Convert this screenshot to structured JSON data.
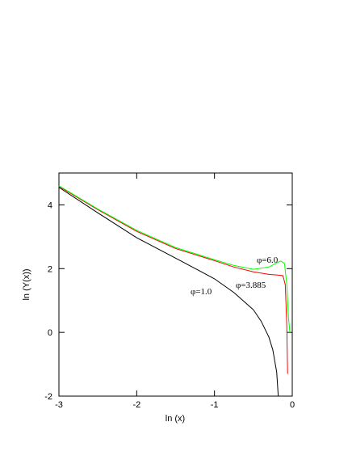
{
  "chart_data": {
    "type": "line",
    "xlabel": "ln (x)",
    "ylabel": "ln (Y(x))",
    "xlim": [
      -3,
      0
    ],
    "ylim": [
      -2,
      5
    ],
    "xticks": [
      -3,
      -2,
      -1,
      0
    ],
    "yticks": [
      -2,
      0,
      2,
      4
    ],
    "series": [
      {
        "name": "φ=1.0",
        "color": "#000000",
        "x": [
          -3,
          -2.5,
          -2,
          -1.5,
          -1,
          -0.75,
          -0.5,
          -0.4,
          -0.3,
          -0.25,
          -0.2,
          -0.18
        ],
        "values": [
          4.55,
          3.75,
          2.97,
          2.33,
          1.68,
          1.25,
          0.71,
          0.35,
          -0.15,
          -0.55,
          -1.25,
          -2
        ]
      },
      {
        "name": "φ=3.885",
        "color": "#ff0000",
        "x": [
          -3,
          -2.5,
          -2,
          -1.5,
          -1,
          -0.75,
          -0.5,
          -0.3,
          -0.2,
          -0.12,
          -0.09,
          -0.07,
          -0.06
        ],
        "values": [
          4.58,
          3.85,
          3.17,
          2.63,
          2.25,
          2.05,
          1.9,
          1.82,
          1.8,
          1.78,
          1.5,
          0.2,
          -1.3
        ]
      },
      {
        "name": "φ=6.0",
        "color": "#00ff00",
        "x": [
          -3,
          -2.5,
          -2,
          -1.5,
          -1,
          -0.75,
          -0.5,
          -0.3,
          -0.2,
          -0.15,
          -0.1,
          -0.07,
          -0.05,
          -0.03
        ],
        "values": [
          4.6,
          3.87,
          3.2,
          2.66,
          2.28,
          2.1,
          1.98,
          2.05,
          2.18,
          2.24,
          2.16,
          1.5,
          0.5,
          0.0
        ]
      }
    ]
  }
}
